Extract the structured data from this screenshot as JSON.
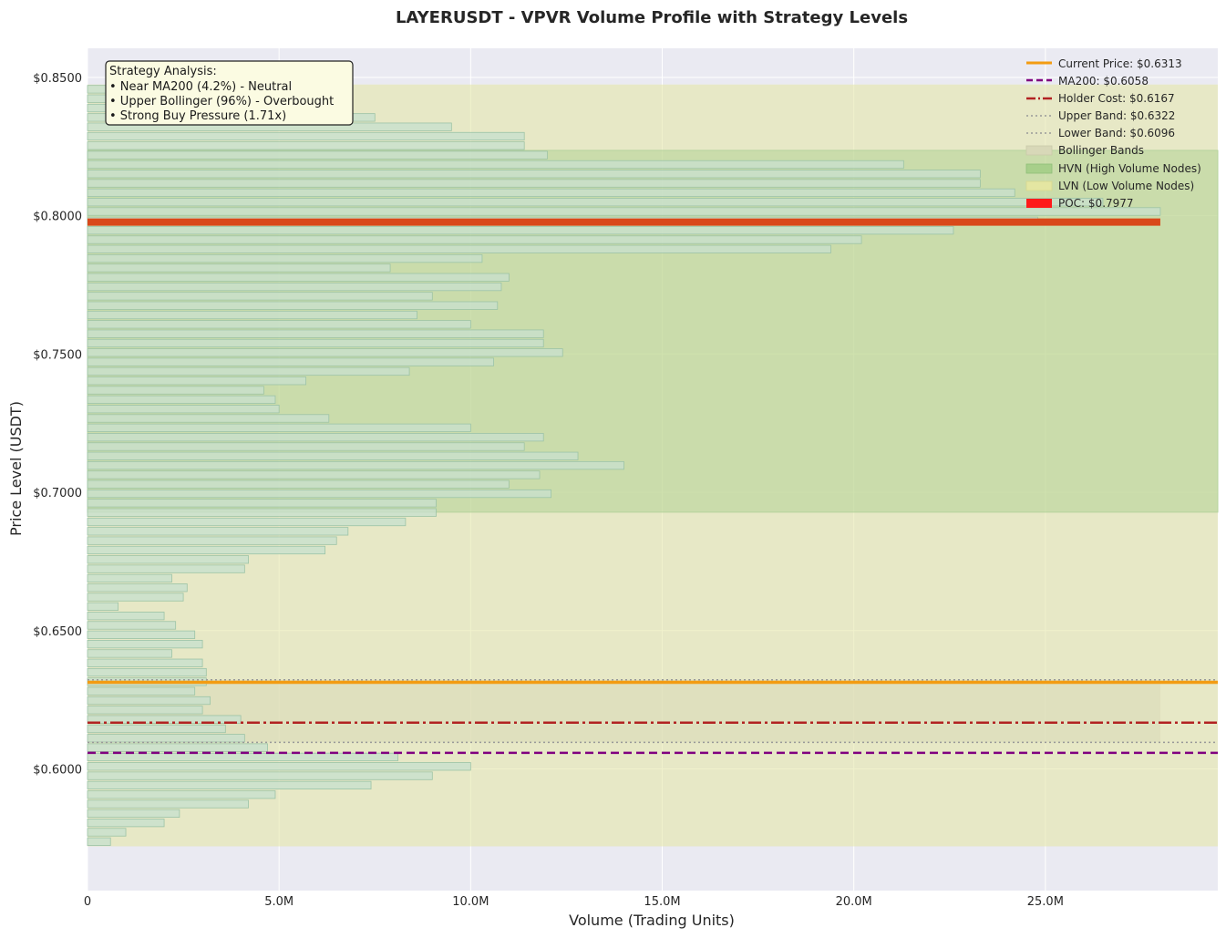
{
  "chart_data": {
    "type": "bar",
    "orientation": "horizontal",
    "title": "LAYERUSDT - VPVR Volume Profile with Strategy Levels",
    "xlabel": "Volume (Trading Units)",
    "ylabel": "Price Level (USDT)",
    "xlim": [
      0,
      29500000
    ],
    "ylim": [
      0.556,
      0.8605
    ],
    "x_ticks": [
      {
        "value": 0,
        "label": "0"
      },
      {
        "value": 5000000,
        "label": "5.0M"
      },
      {
        "value": 10000000,
        "label": "10.0M"
      },
      {
        "value": 15000000,
        "label": "15.0M"
      },
      {
        "value": 20000000,
        "label": "20.0M"
      },
      {
        "value": 25000000,
        "label": "25.0M"
      }
    ],
    "y_ticks": [
      {
        "value": 0.85,
        "label": "$0.8500"
      },
      {
        "value": 0.8,
        "label": "$0.8000"
      },
      {
        "value": 0.75,
        "label": "$0.7500"
      },
      {
        "value": 0.7,
        "label": "$0.7000"
      },
      {
        "value": 0.65,
        "label": "$0.6500"
      },
      {
        "value": 0.6,
        "label": "$0.6000"
      }
    ],
    "grid": true,
    "legend_position": "top-right",
    "price_step": 0.0034,
    "profile": [
      {
        "price": 0.5737,
        "volume": 600000
      },
      {
        "price": 0.5771,
        "volume": 1000000
      },
      {
        "price": 0.5805,
        "volume": 2000000
      },
      {
        "price": 0.5839,
        "volume": 2400000
      },
      {
        "price": 0.5873,
        "volume": 4200000
      },
      {
        "price": 0.5907,
        "volume": 4900000
      },
      {
        "price": 0.5941,
        "volume": 7400000
      },
      {
        "price": 0.5975,
        "volume": 9000000
      },
      {
        "price": 0.6009,
        "volume": 10000000
      },
      {
        "price": 0.6043,
        "volume": 8100000
      },
      {
        "price": 0.6077,
        "volume": 4700000
      },
      {
        "price": 0.6111,
        "volume": 4100000
      },
      {
        "price": 0.6145,
        "volume": 3600000
      },
      {
        "price": 0.6179,
        "volume": 4000000
      },
      {
        "price": 0.6213,
        "volume": 3000000
      },
      {
        "price": 0.6247,
        "volume": 3200000
      },
      {
        "price": 0.6281,
        "volume": 2800000
      },
      {
        "price": 0.6315,
        "volume": 3100000
      },
      {
        "price": 0.6349,
        "volume": 3100000
      },
      {
        "price": 0.6383,
        "volume": 3000000
      },
      {
        "price": 0.6417,
        "volume": 2200000
      },
      {
        "price": 0.6451,
        "volume": 3000000
      },
      {
        "price": 0.6485,
        "volume": 2800000
      },
      {
        "price": 0.6519,
        "volume": 2300000
      },
      {
        "price": 0.6553,
        "volume": 2000000
      },
      {
        "price": 0.6587,
        "volume": 800000
      },
      {
        "price": 0.6621,
        "volume": 2500000
      },
      {
        "price": 0.6655,
        "volume": 2600000
      },
      {
        "price": 0.6689,
        "volume": 2200000
      },
      {
        "price": 0.6723,
        "volume": 4100000
      },
      {
        "price": 0.6757,
        "volume": 4200000
      },
      {
        "price": 0.6791,
        "volume": 6200000
      },
      {
        "price": 0.6825,
        "volume": 6500000
      },
      {
        "price": 0.6859,
        "volume": 6800000
      },
      {
        "price": 0.6893,
        "volume": 8300000
      },
      {
        "price": 0.6927,
        "volume": 9100000
      },
      {
        "price": 0.6961,
        "volume": 9100000
      },
      {
        "price": 0.6995,
        "volume": 12100000
      },
      {
        "price": 0.7029,
        "volume": 11000000
      },
      {
        "price": 0.7063,
        "volume": 11800000
      },
      {
        "price": 0.7097,
        "volume": 14000000
      },
      {
        "price": 0.7131,
        "volume": 12800000
      },
      {
        "price": 0.7165,
        "volume": 11400000
      },
      {
        "price": 0.7199,
        "volume": 11900000
      },
      {
        "price": 0.7233,
        "volume": 10000000
      },
      {
        "price": 0.7267,
        "volume": 6300000
      },
      {
        "price": 0.7301,
        "volume": 5000000
      },
      {
        "price": 0.7335,
        "volume": 4900000
      },
      {
        "price": 0.7369,
        "volume": 4600000
      },
      {
        "price": 0.7403,
        "volume": 5700000
      },
      {
        "price": 0.7437,
        "volume": 8400000
      },
      {
        "price": 0.7471,
        "volume": 10600000
      },
      {
        "price": 0.7505,
        "volume": 12400000
      },
      {
        "price": 0.7539,
        "volume": 11900000
      },
      {
        "price": 0.7573,
        "volume": 11900000
      },
      {
        "price": 0.7607,
        "volume": 10000000
      },
      {
        "price": 0.7641,
        "volume": 8600000
      },
      {
        "price": 0.7675,
        "volume": 10700000
      },
      {
        "price": 0.7709,
        "volume": 9000000
      },
      {
        "price": 0.7743,
        "volume": 10800000
      },
      {
        "price": 0.7777,
        "volume": 11000000
      },
      {
        "price": 0.7811,
        "volume": 7900000
      },
      {
        "price": 0.7845,
        "volume": 10300000
      },
      {
        "price": 0.7879,
        "volume": 19400000
      },
      {
        "price": 0.7913,
        "volume": 20200000
      },
      {
        "price": 0.7947,
        "volume": 22600000
      },
      {
        "price": 0.7981,
        "volume": 24800000
      },
      {
        "price": 0.8015,
        "volume": 28000000
      },
      {
        "price": 0.8049,
        "volume": 26500000
      },
      {
        "price": 0.8083,
        "volume": 24200000
      },
      {
        "price": 0.8117,
        "volume": 23300000
      },
      {
        "price": 0.8151,
        "volume": 23300000
      },
      {
        "price": 0.8185,
        "volume": 21300000
      },
      {
        "price": 0.8219,
        "volume": 12000000
      },
      {
        "price": 0.8253,
        "volume": 11400000
      },
      {
        "price": 0.8287,
        "volume": 11400000
      },
      {
        "price": 0.8321,
        "volume": 9500000
      },
      {
        "price": 0.8355,
        "volume": 7500000
      },
      {
        "price": 0.8389,
        "volume": 5500000
      },
      {
        "price": 0.8423,
        "volume": 3300000
      },
      {
        "price": 0.8457,
        "volume": 1800000
      }
    ],
    "levels": {
      "current_price": {
        "value": 0.6313,
        "label": "Current Price: $0.6313",
        "color": "#f39c12"
      },
      "ma200": {
        "value": 0.6058,
        "label": "MA200: $0.6058",
        "color": "#800080"
      },
      "holder_cost": {
        "value": 0.6167,
        "label": "Holder Cost: $0.6167",
        "color": "#b22222"
      },
      "upper_band": {
        "value": 0.6322,
        "label": "Upper Band: $0.6322",
        "color": "#999999"
      },
      "lower_band": {
        "value": 0.6096,
        "label": "Lower Band: $0.6096",
        "color": "#999999"
      },
      "poc": {
        "value": 0.7977,
        "label": "POC: $0.7977",
        "color": "#d9481a"
      }
    },
    "bands": {
      "bollinger": {
        "label": "Bollinger Bands",
        "low": 0.6096,
        "high": 0.6322,
        "color": "#d8d8b8"
      },
      "hvn": {
        "label": "HVN (High Volume Nodes)",
        "low": 0.6945,
        "high": 0.8219,
        "color": "#a7cf8a"
      },
      "lvn": {
        "label": "LVN (Low Volume Nodes)",
        "low": 0.5737,
        "high": 0.8457,
        "color": "#e4e6a2"
      }
    },
    "colors": {
      "plot_background": "#eaeaf2",
      "bar_fill": "#c8e0cd",
      "bar_edge": "#9cc3a6",
      "grid": "#ffffff"
    },
    "annotation": {
      "heading": "Strategy Analysis:",
      "lines": [
        "• Near MA200 (4.2%) - Neutral",
        "• Upper Bollinger (96%) - Overbought",
        "• Strong Buy Pressure (1.71x)"
      ]
    }
  }
}
